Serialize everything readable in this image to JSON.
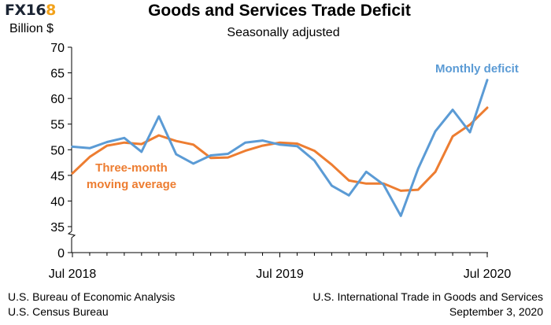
{
  "logo": {
    "text_main": "FX16",
    "text_accent": "8"
  },
  "chart_data": {
    "type": "line",
    "title": "Goods and Services Trade Deficit",
    "subtitle": "Seasonally adjusted",
    "ylabel": "Billion $",
    "xlabel": "",
    "ylim": [
      35,
      70
    ],
    "yticks": [
      70,
      65,
      60,
      55,
      50,
      45,
      40,
      35,
      0
    ],
    "axis_break": "between 0 and 35",
    "x": [
      "Jul 2018",
      "Aug 2018",
      "Sep 2018",
      "Oct 2018",
      "Nov 2018",
      "Dec 2018",
      "Jan 2019",
      "Feb 2019",
      "Mar 2019",
      "Apr 2019",
      "May 2019",
      "Jun 2019",
      "Jul 2019",
      "Aug 2019",
      "Sep 2019",
      "Oct 2019",
      "Nov 2019",
      "Dec 2019",
      "Jan 2020",
      "Feb 2020",
      "Mar 2020",
      "Apr 2020",
      "May 2020",
      "Jun 2020",
      "Jul 2020"
    ],
    "xtick_labels": [
      {
        "index": 0,
        "label": "Jul 2018"
      },
      {
        "index": 12,
        "label": "Jul 2019"
      },
      {
        "index": 24,
        "label": "Jul 2020"
      }
    ],
    "series": [
      {
        "name": "Monthly deficit",
        "color": "#5b9bd5",
        "values": [
          50.6,
          50.3,
          51.5,
          52.3,
          49.6,
          56.5,
          49.1,
          47.3,
          48.9,
          49.2,
          51.4,
          51.8,
          51.0,
          50.7,
          47.9,
          43.0,
          41.1,
          45.7,
          43.2,
          37.1,
          46.3,
          53.6,
          57.8,
          53.4,
          63.6
        ]
      },
      {
        "name": "Three-month moving average",
        "color": "#ed7d31",
        "values": [
          45.4,
          48.6,
          50.8,
          51.4,
          51.1,
          52.8,
          51.7,
          51.0,
          48.4,
          48.5,
          49.8,
          50.8,
          51.4,
          51.2,
          49.8,
          47.1,
          44.0,
          43.4,
          43.4,
          42.0,
          42.2,
          45.7,
          52.6,
          54.9,
          58.2
        ]
      }
    ],
    "annotations": [
      {
        "text": "Monthly deficit",
        "color": "#5b9bd5"
      },
      {
        "text_line1": "Three-month",
        "text_line2": "moving average",
        "color": "#ed7d31"
      }
    ]
  },
  "source": {
    "left_line1": "U.S. Bureau of Economic Analysis",
    "left_line2": "U.S. Census Bureau",
    "right_line1": "U.S. International Trade in Goods and Services",
    "right_line2": "September 3, 2020"
  }
}
